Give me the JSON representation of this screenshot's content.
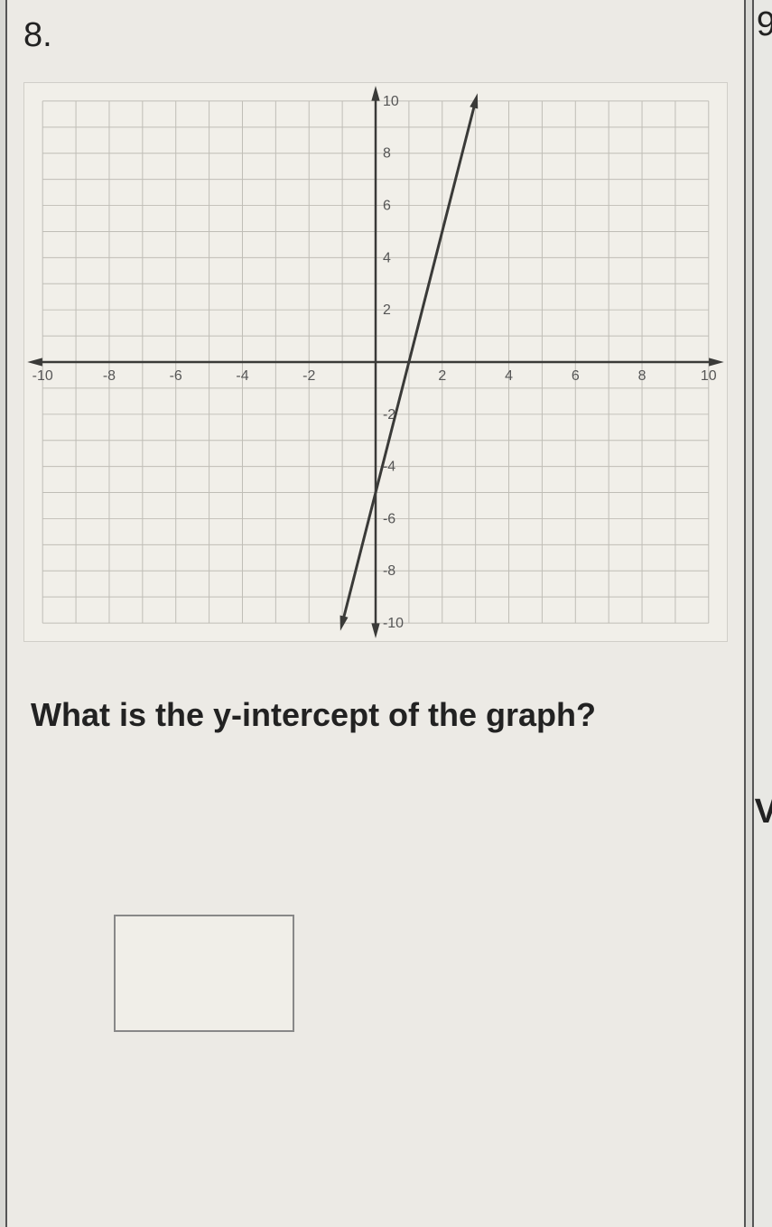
{
  "problem": {
    "number": "8.",
    "question": "What is the y-intercept of the graph?"
  },
  "adjacent": {
    "top_right_fragment": "9",
    "mid_right_fragment": "V"
  },
  "graph": {
    "type": "line",
    "xlim": [
      -10,
      10
    ],
    "ylim": [
      -10,
      10
    ],
    "xtick_step": 1,
    "ytick_step": 1,
    "xtick_labels": [
      "-10",
      "-8",
      "-6",
      "-4",
      "-2",
      "2",
      "4",
      "6",
      "8",
      "10"
    ],
    "xtick_label_positions": [
      -10,
      -8,
      -6,
      -4,
      -2,
      2,
      4,
      6,
      8,
      10
    ],
    "ytick_labels": [
      "10",
      "8",
      "6",
      "4",
      "2",
      "-2",
      "-4",
      "-6",
      "-8",
      "-10"
    ],
    "ytick_label_positions": [
      10,
      8,
      6,
      4,
      2,
      -2,
      -4,
      -6,
      -8,
      -10
    ],
    "label_fontsize": 16,
    "background_color": "#f1efe9",
    "grid_color": "#bfbdb6",
    "axis_color": "#3a3a38",
    "axis_width": 2.5,
    "grid_width": 1,
    "line": {
      "color": "#3a3a38",
      "width": 3,
      "points": [
        [
          -1,
          -10
        ],
        [
          3,
          10
        ]
      ],
      "arrows": true
    }
  },
  "answer_box": {
    "border_color": "#888888",
    "background": "#f0eee8"
  }
}
